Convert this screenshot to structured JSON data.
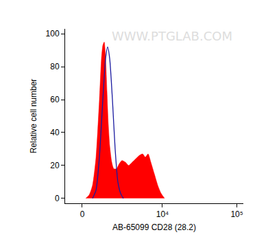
{
  "chart_data": {
    "type": "area",
    "x_label": "AB-65099 CD28 (28.2)",
    "y_label": "Relative cell number",
    "watermark": "WWW.PTGLAB.COM",
    "xlim": [
      -940,
      122000
    ],
    "xticks": [
      0,
      {
        "value": 10000,
        "label": "10⁴"
      },
      {
        "value": 100000,
        "label": "10⁵"
      }
    ],
    "ylim": [
      -3,
      103
    ],
    "yticks": [
      0,
      20,
      40,
      60,
      80,
      100
    ],
    "grid": false,
    "series": [
      {
        "type": "area",
        "color": "#ff0000",
        "x": [
          180,
          361,
          548,
          744,
          942,
          1066,
          1153,
          1241,
          1331,
          1423,
          1517,
          1615,
          1768,
          1925,
          2149,
          2386,
          2640,
          2980,
          3350,
          3796,
          4257,
          4766,
          5330,
          5820,
          6360,
          6935,
          7735,
          8620,
          9590,
          10680
        ],
        "values": [
          0,
          2,
          8,
          25,
          60,
          85,
          93,
          95,
          85,
          65,
          45,
          32,
          22,
          18,
          18,
          21,
          23,
          22,
          20,
          22,
          24,
          26,
          27,
          25,
          27,
          22,
          15,
          8,
          3,
          0
        ]
      },
      {
        "type": "line",
        "color": "#1a1aa0",
        "x": [
          548,
          744,
          942,
          1153,
          1331,
          1470,
          1615,
          1820,
          2035,
          2266,
          2516,
          2778
        ],
        "values": [
          0,
          5,
          25,
          60,
          85,
          92,
          85,
          60,
          30,
          10,
          3,
          0
        ]
      }
    ]
  }
}
